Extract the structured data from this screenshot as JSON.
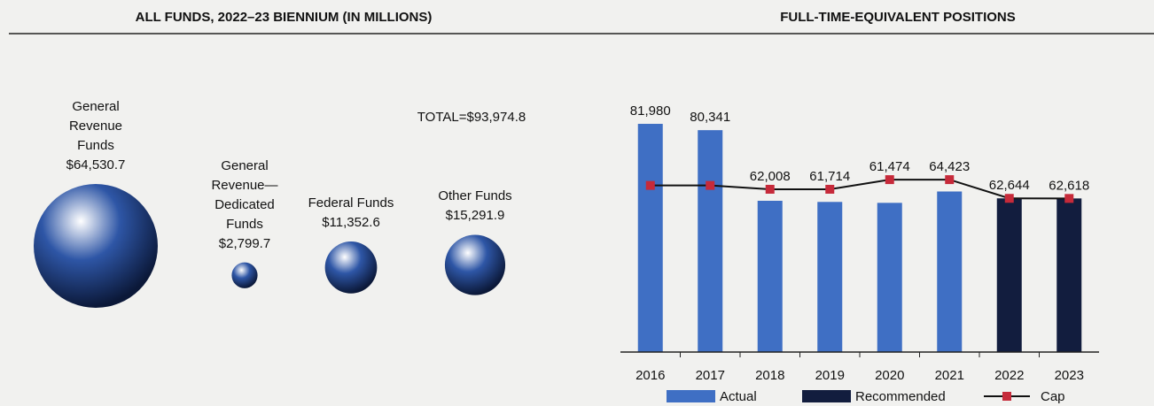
{
  "chart_data": [
    {
      "type": "bubble",
      "title": "ALL FUNDS, 2022–23 BIENNIUM (IN MILLIONS)",
      "annotation": "TOTAL=$93,974.8",
      "categories": [
        "General Revenue Funds",
        "General Revenue—Dedicated Funds",
        "Federal Funds",
        "Other Funds"
      ],
      "values": [
        64530.7,
        2799.7,
        11352.6,
        15291.9
      ],
      "value_labels": [
        "$64,530.7",
        "$2,799.7",
        "$11,352.6",
        "$15,291.9"
      ],
      "color": "#2e56a6"
    },
    {
      "type": "bar",
      "title": "FULL-TIME-EQUIVALENT POSITIONS",
      "categories": [
        "2016",
        "2017",
        "2018",
        "2019",
        "2020",
        "2021",
        "2022",
        "2023"
      ],
      "series": [
        {
          "name": "Actual",
          "color": "#3f6fc4",
          "values": [
            81980,
            80341,
            62008,
            61714,
            61474,
            64423,
            null,
            null
          ],
          "value_labels": [
            "81,980",
            "80,341",
            "62,008",
            "61,714",
            "61,474",
            "64,423",
            null,
            null
          ]
        },
        {
          "name": "Recommended",
          "color": "#121d3e",
          "values": [
            null,
            null,
            null,
            null,
            null,
            null,
            62644,
            62618
          ],
          "value_labels": [
            null,
            null,
            null,
            null,
            null,
            null,
            "62,644",
            "62,618"
          ]
        },
        {
          "name": "Cap",
          "type": "line",
          "color": "#c62a3a",
          "line_color": "#111111",
          "values": [
            66000,
            66000,
            65000,
            65000,
            67500,
            67500,
            62644,
            62618
          ]
        }
      ],
      "ylim": [
        22750,
        86000
      ]
    }
  ]
}
